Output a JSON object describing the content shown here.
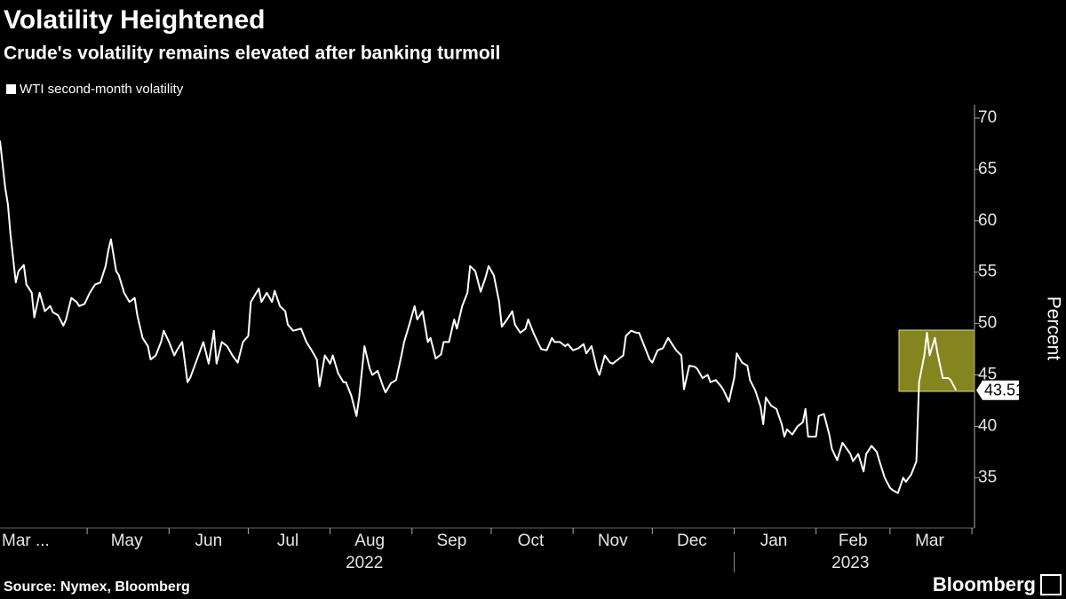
{
  "chart_data": {
    "type": "line",
    "title": "Volatility Heightened",
    "subtitle": "Crude's volatility remains elevated after banking turmoil",
    "ylabel": "Percent",
    "source": "Source: Nymex, Bloomberg",
    "brand": "Bloomberg",
    "x": [
      28,
      30,
      31,
      32,
      34,
      35,
      37,
      38,
      40,
      41,
      43,
      45,
      47,
      48,
      50,
      52,
      53,
      55,
      57,
      58,
      60,
      62,
      64,
      66,
      68,
      69,
      70,
      72,
      73,
      75,
      77,
      79,
      80,
      82,
      84,
      85,
      87,
      89,
      90,
      92,
      94,
      95,
      97,
      99,
      100,
      102,
      105,
      107,
      109,
      110,
      112,
      114,
      116,
      118,
      120,
      122,
      123,
      126,
      127,
      129,
      131,
      132,
      134,
      136,
      137,
      139,
      142,
      144,
      146,
      148,
      149,
      151,
      153,
      154,
      156,
      158,
      159,
      161,
      163,
      164,
      166,
      168,
      169,
      171,
      173,
      174,
      176,
      178,
      180,
      181,
      183,
      185,
      186,
      188,
      190,
      191,
      193,
      195,
      196,
      198,
      200,
      201,
      203,
      205,
      206,
      208,
      210,
      212,
      213,
      215,
      217,
      218,
      220,
      222,
      223,
      225,
      227,
      228,
      230,
      232,
      233,
      235,
      237,
      238,
      240,
      242,
      243,
      245,
      247,
      249,
      250,
      252,
      254,
      255,
      257,
      259,
      260,
      262,
      264,
      265,
      267,
      269,
      270,
      272,
      274,
      275,
      277,
      279,
      281,
      282,
      284,
      286,
      287,
      289,
      291,
      292,
      294,
      296,
      297,
      299,
      301,
      302,
      304,
      306,
      307,
      309,
      311,
      312,
      314,
      316,
      317,
      318,
      320,
      322,
      324,
      325,
      326,
      328,
      330,
      332,
      333,
      334,
      337,
      338,
      340,
      342,
      343,
      345,
      347,
      350,
      351,
      353,
      355,
      356,
      358,
      360,
      361,
      363,
      365,
      366,
      368,
      370,
      371,
      373,
      375,
      376,
      378,
      379,
      380,
      382,
      383,
      385,
      387,
      388,
      390
    ],
    "series": [
      {
        "name": "WTI second-month volatility",
        "color": "#ffffff",
        "values": [
          67.8,
          63.2,
          61.6,
          58.6,
          54.0,
          55.1,
          55.7,
          53.8,
          53.0,
          50.6,
          53.0,
          51.2,
          51.7,
          51.1,
          50.8,
          49.8,
          50.4,
          52.5,
          52.1,
          51.7,
          51.9,
          53.0,
          53.8,
          54.0,
          55.6,
          57.1,
          58.2,
          55.1,
          54.7,
          53.0,
          52.1,
          52.5,
          50.8,
          48.6,
          47.8,
          46.5,
          46.9,
          48.2,
          49.3,
          48.2,
          46.9,
          47.4,
          48.2,
          44.3,
          44.7,
          46.1,
          48.2,
          46.1,
          49.3,
          46.1,
          48.2,
          47.8,
          46.9,
          46.2,
          48.2,
          48.8,
          52.1,
          53.4,
          52.1,
          53.0,
          52.1,
          53.2,
          51.7,
          51.2,
          49.9,
          49.3,
          49.5,
          48.2,
          47.4,
          46.5,
          43.9,
          46.9,
          46.1,
          46.9,
          45.2,
          44.3,
          44.3,
          43.0,
          41.0,
          42.8,
          47.8,
          45.6,
          45.0,
          45.4,
          43.9,
          43.3,
          44.2,
          44.5,
          46.9,
          48.2,
          49.9,
          51.7,
          50.4,
          51.2,
          48.2,
          48.6,
          46.6,
          47.0,
          48.2,
          48.2,
          50.4,
          49.5,
          51.7,
          53.0,
          55.6,
          55.1,
          53.1,
          54.6,
          55.6,
          54.7,
          52.1,
          49.7,
          50.4,
          51.2,
          49.9,
          49.1,
          49.5,
          50.4,
          49.1,
          48.0,
          47.5,
          47.4,
          48.6,
          48.2,
          48.2,
          47.8,
          48.0,
          47.4,
          47.6,
          48.0,
          47.1,
          47.8,
          45.6,
          45.0,
          46.9,
          46.2,
          46.1,
          46.5,
          46.9,
          48.8,
          49.3,
          49.1,
          49.1,
          47.8,
          46.5,
          46.2,
          47.4,
          47.6,
          48.6,
          48.2,
          47.4,
          46.9,
          43.6,
          45.9,
          45.8,
          45.6,
          44.7,
          45.0,
          44.3,
          44.5,
          43.9,
          43.5,
          42.4,
          44.7,
          47.1,
          46.2,
          45.9,
          44.5,
          43.5,
          41.9,
          40.2,
          42.8,
          42.0,
          41.7,
          40.2,
          39.0,
          39.7,
          39.2,
          40.0,
          40.4,
          41.7,
          39.0,
          39.0,
          41.0,
          41.2,
          39.2,
          37.8,
          36.7,
          38.4,
          37.3,
          36.6,
          37.3,
          35.6,
          37.3,
          38.1,
          37.5,
          36.6,
          35.0,
          34.0,
          33.8,
          33.5,
          35.0,
          34.6,
          35.3,
          36.6,
          44.3,
          46.9,
          49.1,
          46.9,
          48.6,
          47.1,
          44.7,
          44.7,
          44.5,
          43.51
        ]
      }
    ],
    "xlim": [
      28,
      397
    ],
    "xticks": [
      61,
      92,
      122,
      153,
      184,
      214,
      245,
      275,
      306,
      337,
      365,
      396
    ],
    "xlabels": [
      {
        "value": 28,
        "label": "Mar ..."
      },
      {
        "value": 76,
        "label": "May"
      },
      {
        "value": 107,
        "label": "Jun"
      },
      {
        "value": 137,
        "label": "Jul"
      },
      {
        "value": 168,
        "label": "Aug"
      },
      {
        "value": 199,
        "label": "Sep"
      },
      {
        "value": 229,
        "label": "Oct"
      },
      {
        "value": 260,
        "label": "Nov"
      },
      {
        "value": 290,
        "label": "Dec"
      },
      {
        "value": 321,
        "label": "Jan"
      },
      {
        "value": 351,
        "label": "Feb"
      },
      {
        "value": 380,
        "label": "Mar"
      }
    ],
    "years": [
      {
        "value": 166,
        "label": "2022"
      },
      {
        "value": 350,
        "label": "2023"
      }
    ],
    "ylim": [
      30.1,
      71.3
    ],
    "yticks": [
      35,
      40,
      45,
      50,
      55,
      60,
      65,
      70
    ],
    "grid": false
  }
}
